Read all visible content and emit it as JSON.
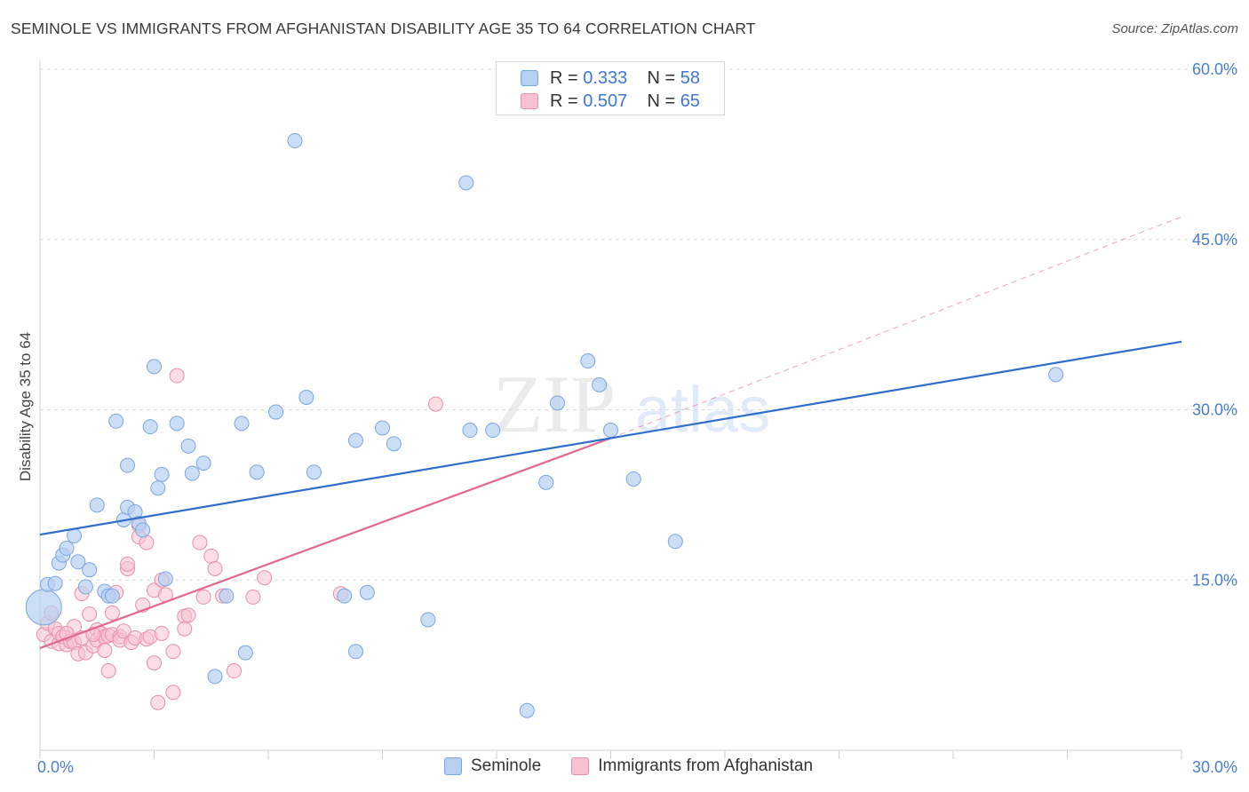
{
  "header": {
    "title": "SEMINOLE VS IMMIGRANTS FROM AFGHANISTAN DISABILITY AGE 35 TO 64 CORRELATION CHART",
    "source": "Source: ZipAtlas.com"
  },
  "legend_top": {
    "rows": [
      {
        "r_label": "R = ",
        "r_value": "0.333",
        "n_label": "N = ",
        "n_value": "58"
      },
      {
        "r_label": "R = ",
        "r_value": "0.507",
        "n_label": "N = ",
        "n_value": "65"
      }
    ]
  },
  "legend_bottom": {
    "items": [
      {
        "label": "Seminole"
      },
      {
        "label": "Immigrants from Afghanistan"
      }
    ]
  },
  "watermark": {
    "zip": "ZIP",
    "atlas": "atlas"
  },
  "colors": {
    "blue_fill": "#b7d0f2",
    "blue_stroke": "#7aa6e0",
    "blue_line": "#2f6fcc",
    "pink_fill": "#f7c1d1",
    "pink_stroke": "#e890ab",
    "pink_line": "#e46792",
    "tick_text": "#4a7fd0",
    "grid": "#dcdcdc"
  },
  "chart_data": {
    "type": "scatter",
    "title": "SEMINOLE VS IMMIGRANTS FROM AFGHANISTAN DISABILITY AGE 35 TO 64 CORRELATION CHART",
    "xlabel": "",
    "ylabel": "Disability Age 35 to 64",
    "xlim": [
      0,
      30
    ],
    "ylim": [
      0,
      60
    ],
    "x_tick_labels": [
      {
        "value": 0,
        "label": "0.0%"
      },
      {
        "value": 30,
        "label": "30.0%"
      }
    ],
    "y_tick_labels": [
      {
        "value": 15,
        "label": "15.0%"
      },
      {
        "value": 30,
        "label": "30.0%"
      },
      {
        "value": 45,
        "label": "45.0%"
      },
      {
        "value": 60,
        "label": "60.0%"
      }
    ],
    "grid": true,
    "legend_position": "top-center",
    "series": [
      {
        "name": "Seminole",
        "r": 0.333,
        "n": 58,
        "trend": {
          "x0": 0,
          "y0": 19.0,
          "x1": 30,
          "y1": 36.0
        },
        "points": [
          [
            0.1,
            12.6
          ],
          [
            0.2,
            14.6
          ],
          [
            0.4,
            14.7
          ],
          [
            0.5,
            16.5
          ],
          [
            0.6,
            17.2
          ],
          [
            0.7,
            17.8
          ],
          [
            0.9,
            18.9
          ],
          [
            1.0,
            16.6
          ],
          [
            1.2,
            14.4
          ],
          [
            1.3,
            15.9
          ],
          [
            1.5,
            21.6
          ],
          [
            1.7,
            14.0
          ],
          [
            1.8,
            13.6
          ],
          [
            1.9,
            13.6
          ],
          [
            2.0,
            29.0
          ],
          [
            2.2,
            20.3
          ],
          [
            2.3,
            25.1
          ],
          [
            2.3,
            21.4
          ],
          [
            2.5,
            21.0
          ],
          [
            2.6,
            20.0
          ],
          [
            2.7,
            19.4
          ],
          [
            2.9,
            28.5
          ],
          [
            3.0,
            33.8
          ],
          [
            3.1,
            23.1
          ],
          [
            3.2,
            24.3
          ],
          [
            3.3,
            15.1
          ],
          [
            3.6,
            28.8
          ],
          [
            3.9,
            26.8
          ],
          [
            4.0,
            24.4
          ],
          [
            4.3,
            25.3
          ],
          [
            4.9,
            13.6
          ],
          [
            5.3,
            28.8
          ],
          [
            5.4,
            8.6
          ],
          [
            5.7,
            24.5
          ],
          [
            6.2,
            29.8
          ],
          [
            6.7,
            53.7
          ],
          [
            7.0,
            31.1
          ],
          [
            7.2,
            24.5
          ],
          [
            8.0,
            13.6
          ],
          [
            8.3,
            27.3
          ],
          [
            8.3,
            8.7
          ],
          [
            8.6,
            13.9
          ],
          [
            9.0,
            28.4
          ],
          [
            9.3,
            27.0
          ],
          [
            10.2,
            11.5
          ],
          [
            11.2,
            50.0
          ],
          [
            11.3,
            28.2
          ],
          [
            11.9,
            28.2
          ],
          [
            12.8,
            3.5
          ],
          [
            13.3,
            23.6
          ],
          [
            13.6,
            30.6
          ],
          [
            14.4,
            34.3
          ],
          [
            14.7,
            32.2
          ],
          [
            15.0,
            28.2
          ],
          [
            15.6,
            23.9
          ],
          [
            16.7,
            18.4
          ],
          [
            26.7,
            33.1
          ],
          [
            4.6,
            6.5
          ]
        ]
      },
      {
        "name": "Immigrants from Afghanistan",
        "r": 0.507,
        "n": 65,
        "trend": {
          "x0": 0,
          "y0": 9.0,
          "x1": 15.0,
          "y1": 27.5
        },
        "trend_extension": {
          "x0": 15.0,
          "y0": 27.5,
          "x1": 30,
          "y1": 47.0
        },
        "points": [
          [
            0.1,
            10.2
          ],
          [
            0.2,
            11.2
          ],
          [
            0.3,
            9.6
          ],
          [
            0.3,
            12.1
          ],
          [
            0.4,
            10.7
          ],
          [
            0.5,
            9.4
          ],
          [
            0.5,
            10.3
          ],
          [
            0.6,
            10.0
          ],
          [
            0.7,
            9.3
          ],
          [
            0.8,
            9.6
          ],
          [
            0.9,
            10.9
          ],
          [
            0.9,
            9.5
          ],
          [
            1.0,
            8.5
          ],
          [
            1.1,
            13.8
          ],
          [
            1.1,
            9.9
          ],
          [
            1.2,
            8.6
          ],
          [
            1.3,
            12.0
          ],
          [
            1.4,
            9.2
          ],
          [
            1.5,
            10.6
          ],
          [
            1.5,
            9.7
          ],
          [
            1.6,
            10.3
          ],
          [
            1.7,
            10.0
          ],
          [
            1.7,
            8.8
          ],
          [
            1.8,
            7.0
          ],
          [
            1.8,
            10.1
          ],
          [
            1.9,
            12.1
          ],
          [
            1.9,
            10.2
          ],
          [
            2.0,
            13.9
          ],
          [
            2.1,
            10.0
          ],
          [
            2.1,
            9.7
          ],
          [
            2.2,
            10.5
          ],
          [
            2.3,
            16.0
          ],
          [
            2.3,
            16.4
          ],
          [
            2.4,
            9.5
          ],
          [
            2.5,
            9.9
          ],
          [
            2.6,
            18.8
          ],
          [
            2.6,
            19.8
          ],
          [
            2.7,
            12.8
          ],
          [
            2.8,
            9.8
          ],
          [
            2.8,
            18.3
          ],
          [
            2.9,
            10.0
          ],
          [
            3.0,
            7.7
          ],
          [
            3.0,
            14.1
          ],
          [
            3.1,
            4.2
          ],
          [
            3.2,
            10.3
          ],
          [
            3.2,
            15.0
          ],
          [
            3.3,
            13.7
          ],
          [
            3.5,
            8.7
          ],
          [
            3.5,
            5.1
          ],
          [
            3.6,
            33.0
          ],
          [
            3.8,
            11.8
          ],
          [
            3.8,
            10.7
          ],
          [
            3.9,
            11.9
          ],
          [
            4.2,
            18.3
          ],
          [
            4.3,
            13.5
          ],
          [
            4.5,
            17.1
          ],
          [
            4.6,
            16.0
          ],
          [
            4.8,
            13.6
          ],
          [
            5.1,
            7.0
          ],
          [
            5.6,
            13.5
          ],
          [
            5.9,
            15.2
          ],
          [
            7.9,
            13.8
          ],
          [
            10.4,
            30.5
          ],
          [
            1.4,
            10.2
          ],
          [
            0.7,
            10.3
          ]
        ]
      }
    ]
  }
}
